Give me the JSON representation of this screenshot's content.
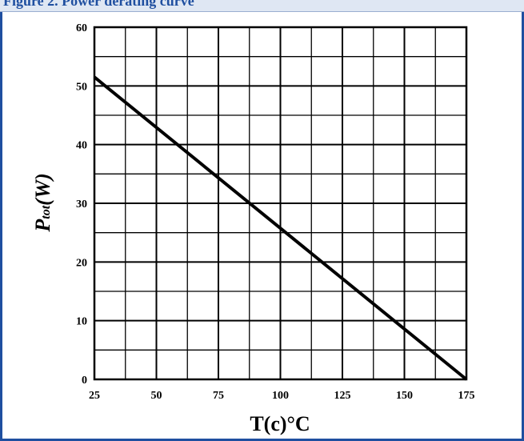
{
  "header": {
    "clipped_text": "Figure 2. Power derating curve"
  },
  "chart_data": {
    "type": "line",
    "xlabel": "T(c)°C",
    "ylabel_main": "P",
    "ylabel_sub": "tot",
    "ylabel_unit": "(W)",
    "xlim": [
      25,
      175
    ],
    "ylim": [
      0,
      60
    ],
    "x_ticks": [
      25,
      50,
      75,
      100,
      125,
      150,
      175
    ],
    "y_ticks": [
      0,
      10,
      20,
      30,
      40,
      50,
      60
    ],
    "grid": true,
    "series": [
      {
        "x": [
          25,
          175
        ],
        "y": [
          51.5,
          0
        ]
      }
    ],
    "colors": {
      "line": "#000000",
      "grid": "#000000",
      "frame": "#1f4fa0"
    }
  }
}
